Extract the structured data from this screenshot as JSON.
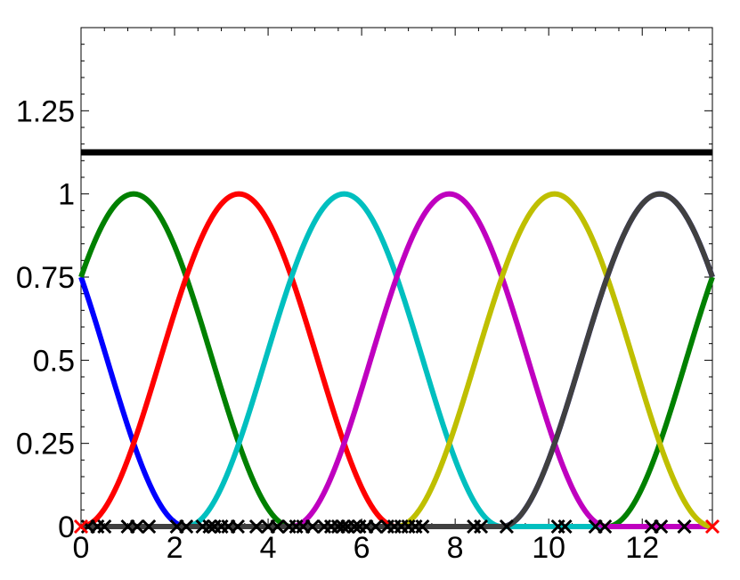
{
  "chart_data": {
    "type": "line",
    "title": "",
    "xlabel": "",
    "ylabel": "",
    "xlim": [
      0,
      13.5
    ],
    "ylim": [
      0,
      1.5
    ],
    "x_ticks": [
      {
        "value": 0,
        "label": "0"
      },
      {
        "value": 2,
        "label": "2"
      },
      {
        "value": 4,
        "label": "4"
      },
      {
        "value": 6,
        "label": "6"
      },
      {
        "value": 8,
        "label": "8"
      },
      {
        "value": 10,
        "label": "10"
      },
      {
        "value": 12,
        "label": "12"
      }
    ],
    "y_ticks": [
      {
        "value": 0,
        "label": "0"
      },
      {
        "value": 0.25,
        "label": "0.25"
      },
      {
        "value": 0.5,
        "label": "0.5"
      },
      {
        "value": 0.75,
        "label": "0.75"
      },
      {
        "value": 1,
        "label": "1"
      },
      {
        "value": 1.25,
        "label": "1.25"
      }
    ],
    "grid": false,
    "legend": "none",
    "constant_line": {
      "y": 1.125,
      "color": "#000000"
    },
    "period": 13.5,
    "basis_width": 6.75,
    "series": [
      {
        "color": "#0000ff",
        "peak_x": 12.375
      },
      {
        "color": "#008000",
        "peak_x": 1.125
      },
      {
        "color": "#ff0000",
        "peak_x": 3.375
      },
      {
        "color": "#00bfbf",
        "peak_x": 5.625
      },
      {
        "color": "#bf00bf",
        "peak_x": 7.875
      },
      {
        "color": "#bfbf00",
        "peak_x": 10.125
      },
      {
        "color": "#404040",
        "peak_x": 12.375,
        "wrap": false
      }
    ],
    "markers": {
      "y": 0,
      "color": "#000000",
      "x": [
        0.15,
        0.35,
        0.5,
        1.0,
        1.2,
        1.45,
        2.05,
        2.25,
        2.6,
        2.75,
        2.85,
        3.0,
        3.15,
        3.35,
        3.75,
        4.0,
        4.2,
        4.45,
        4.6,
        4.75,
        4.95,
        5.2,
        5.35,
        5.5,
        5.6,
        5.7,
        5.85,
        5.95,
        6.1,
        6.3,
        6.55,
        6.7,
        6.85,
        7.0,
        7.15,
        7.3,
        8.4,
        8.55,
        9.1,
        10.2,
        10.35,
        11.0,
        11.2,
        12.2,
        12.4,
        12.9
      ],
      "end_markers": [
        {
          "x": 0,
          "color": "#ff0000"
        },
        {
          "x": 13.5,
          "color": "#ff0000"
        }
      ]
    }
  }
}
